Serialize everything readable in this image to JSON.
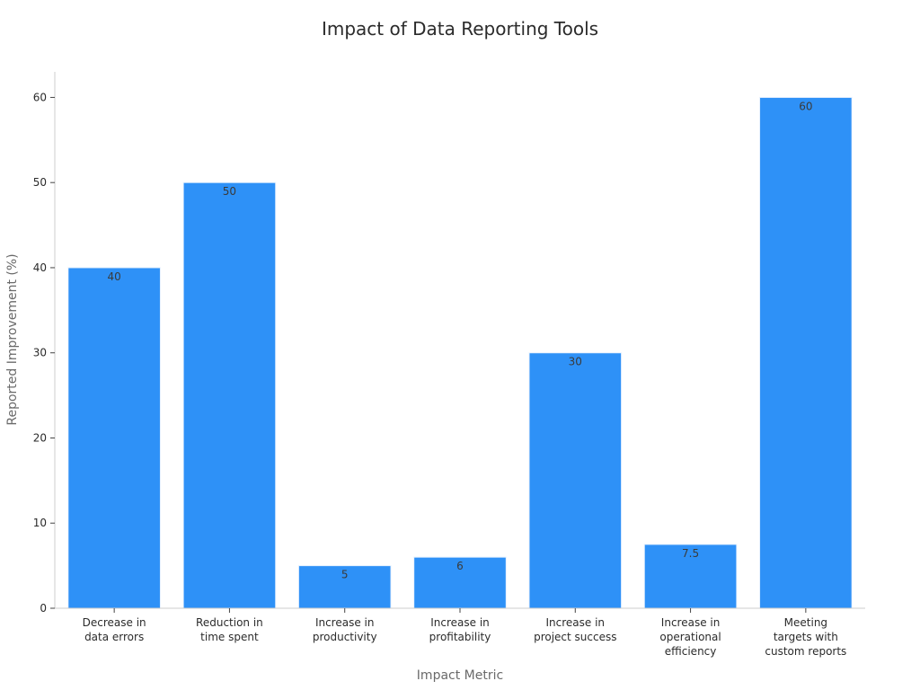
{
  "chart_data": {
    "type": "bar",
    "title": "Impact of Data Reporting Tools",
    "xlabel": "Impact Metric",
    "ylabel": "Reported Improvement (%)",
    "categories": [
      [
        "Decrease in",
        "data errors"
      ],
      [
        "Reduction in",
        "time spent"
      ],
      [
        "Increase in",
        "productivity"
      ],
      [
        "Increase in",
        "profitability"
      ],
      [
        "Increase in",
        "project success"
      ],
      [
        "Increase in",
        "operational",
        "efficiency"
      ],
      [
        "Meeting",
        "targets with",
        "custom reports"
      ]
    ],
    "values": [
      40,
      50,
      5,
      6,
      30,
      7.5,
      60
    ],
    "value_labels": [
      "40",
      "50",
      "5",
      "6",
      "30",
      "7.5",
      "60"
    ],
    "yticks": [
      0,
      10,
      20,
      30,
      40,
      50,
      60
    ],
    "ylim": [
      0,
      63
    ],
    "bar_color": "#2e91f7",
    "grid": false,
    "legend": "none"
  }
}
